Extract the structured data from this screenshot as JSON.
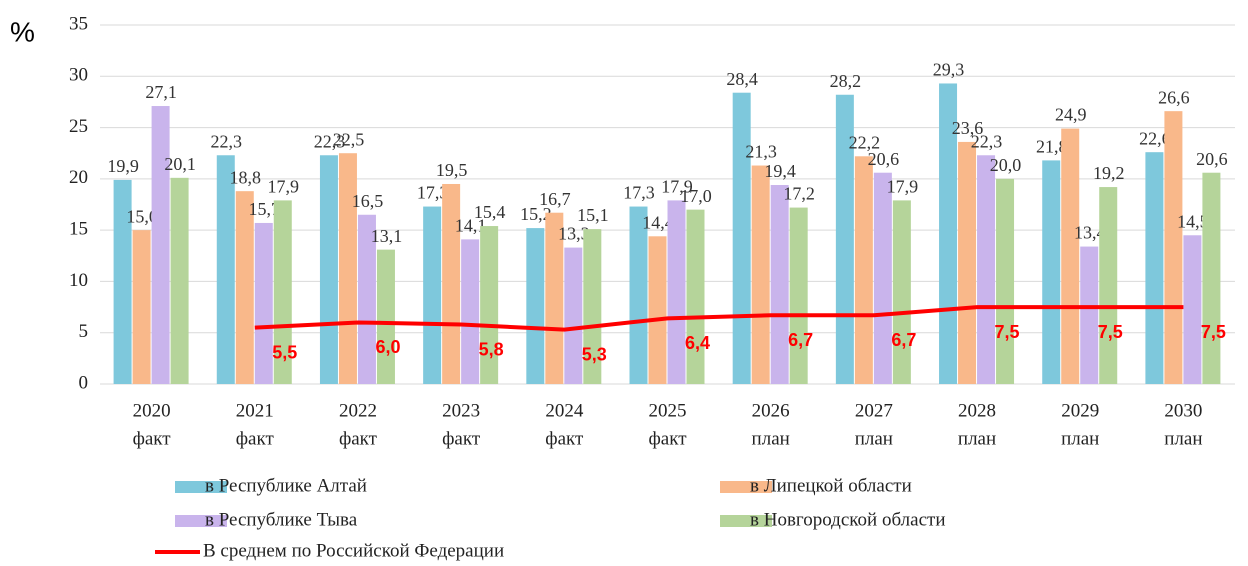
{
  "chart_data": {
    "type": "bar",
    "ylabel": "%",
    "categories": [
      [
        "2020",
        "факт"
      ],
      [
        "2021",
        "факт"
      ],
      [
        "2022",
        "факт"
      ],
      [
        "2023",
        "факт"
      ],
      [
        "2024",
        "факт"
      ],
      [
        "2025",
        "факт"
      ],
      [
        "2026",
        "план"
      ],
      [
        "2027",
        "план"
      ],
      [
        "2028",
        "план"
      ],
      [
        "2029",
        "план"
      ],
      [
        "2030",
        "план"
      ]
    ],
    "series": [
      {
        "name": "в Республике Алтай",
        "color": "#7ec8dc",
        "type": "bar",
        "values": [
          19.9,
          22.3,
          22.3,
          17.3,
          15.2,
          17.3,
          28.4,
          28.2,
          29.3,
          21.8,
          22.6
        ],
        "value_labels": [
          "19,9",
          "22,3",
          "22,3",
          "17,3",
          "15,2",
          "17,3",
          "28,4",
          "28,2",
          "29,3",
          "21,8",
          "22,6"
        ]
      },
      {
        "name": "в Липецкой области",
        "color": "#f9b88a",
        "type": "bar",
        "values": [
          15.0,
          18.8,
          22.5,
          19.5,
          16.7,
          14.4,
          21.3,
          22.2,
          23.6,
          24.9,
          26.6
        ],
        "value_labels": [
          "15,0",
          "18,8",
          "22,5",
          "19,5",
          "16,7",
          "14,4",
          "21,3",
          "22,2",
          "23,6",
          "24,9",
          "26,6"
        ]
      },
      {
        "name": "в Республике Тыва",
        "color": "#c9b4ec",
        "type": "bar",
        "values": [
          27.1,
          15.7,
          16.5,
          14.1,
          13.3,
          17.9,
          19.4,
          20.6,
          22.3,
          13.4,
          14.5
        ],
        "value_labels": [
          "27,1",
          "15,7",
          "16,5",
          "14,1",
          "13,3",
          "17,9",
          "19,4",
          "20,6",
          "22,3",
          "13,4",
          "14,5"
        ]
      },
      {
        "name": "в Новгородской области",
        "color": "#b5d49a",
        "type": "bar",
        "values": [
          20.1,
          17.9,
          13.1,
          15.4,
          15.1,
          17.0,
          17.2,
          17.9,
          20.0,
          19.2,
          20.6
        ],
        "value_labels": [
          "20,1",
          "17,9",
          "13,1",
          "15,4",
          "15,1",
          "17,0",
          "17,2",
          "17,9",
          "20,0",
          "19,2",
          "20,6"
        ]
      },
      {
        "name": "В среднем по Российской Федерации",
        "color": "#ff0000",
        "type": "line",
        "values": [
          null,
          5.5,
          6.0,
          5.8,
          5.3,
          6.4,
          6.7,
          6.7,
          7.5,
          7.5,
          7.5
        ],
        "value_labels": [
          null,
          "5,5",
          "6,0",
          "5,8",
          "5,3",
          "6,4",
          "6,7",
          "6,7",
          "7,5",
          "7,5",
          "7,5"
        ]
      }
    ],
    "ylim": [
      0,
      35
    ],
    "yticks": [
      0,
      5,
      10,
      15,
      20,
      25,
      30,
      35
    ],
    "grid": true
  }
}
